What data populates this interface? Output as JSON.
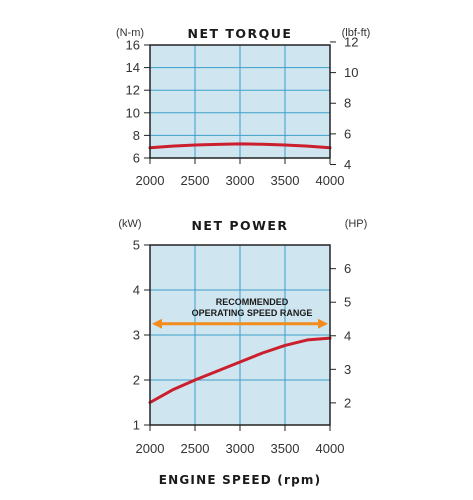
{
  "colors": {
    "plot_bg": "#cfe6f1",
    "grid": "#3d9fc8",
    "curve": "#cc1f2d",
    "range_arrow": "#f28c1c",
    "frame": "#222222"
  },
  "xlabel": "ENGINE SPEED (rpm)",
  "chart_data": [
    {
      "type": "line",
      "title": "NET TORQUE",
      "left_unit": "(N-m)",
      "right_unit": "(lbf-ft)",
      "x_ticks": [
        2000,
        2500,
        3000,
        3500,
        4000
      ],
      "xlim": [
        2000,
        4000
      ],
      "ylim": [
        6,
        16
      ],
      "y_ticks": [
        6,
        8,
        10,
        12,
        14,
        16
      ],
      "right_ticks": [
        4,
        6,
        8,
        10,
        12
      ],
      "right_factor": 0.7376,
      "grid": true,
      "series": [
        {
          "x": [
            2000,
            2250,
            2500,
            2750,
            3000,
            3250,
            3500,
            3750,
            4000
          ],
          "y": [
            6.9,
            7.05,
            7.15,
            7.2,
            7.25,
            7.22,
            7.15,
            7.05,
            6.9
          ]
        }
      ]
    },
    {
      "type": "line",
      "title": "NET POWER",
      "left_unit": "(kW)",
      "right_unit": "(HP)",
      "x_ticks": [
        2000,
        2500,
        3000,
        3500,
        4000
      ],
      "xlim": [
        2000,
        4000
      ],
      "ylim": [
        1,
        5
      ],
      "y_ticks": [
        1,
        2,
        3,
        4,
        5
      ],
      "right_ticks": [
        2,
        3,
        4,
        5,
        6
      ],
      "right_factor": 1.341,
      "grid": true,
      "annotation": {
        "lines": [
          "RECOMMENDED",
          "OPERATING SPEED RANGE"
        ],
        "x_range": [
          2000,
          4000
        ],
        "y": 3.25
      },
      "series": [
        {
          "x": [
            2000,
            2250,
            2500,
            2750,
            3000,
            3250,
            3500,
            3750,
            4000
          ],
          "y": [
            1.5,
            1.78,
            2.0,
            2.2,
            2.4,
            2.6,
            2.77,
            2.89,
            2.93
          ]
        }
      ]
    }
  ]
}
